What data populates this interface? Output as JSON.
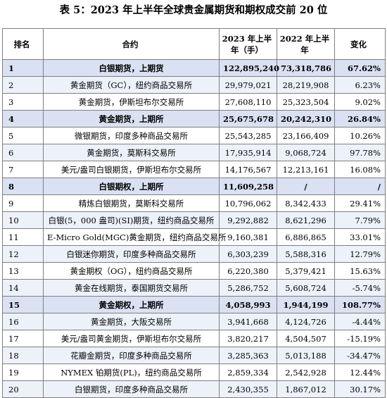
{
  "title": "表 5：2023 年上半年全球贵金属期货和期权成交前 20 位",
  "headers": {
    "rank": "排名",
    "contract": "合约",
    "h2023_line1": "2023 年上半",
    "h2023_line2": "年（手）",
    "h2022_line1": "2022 年上半",
    "h2022_line2": "年",
    "change": "变化"
  },
  "rows": [
    {
      "rank": "1",
      "contract": "白银期货，上期货",
      "v2023": "122,895,240",
      "v2022": "73,318,786",
      "change": "67.62%"
    },
    {
      "rank": "2",
      "contract": "黄金期货（GC），纽约商品交易所",
      "v2023": "29,979,021",
      "v2022": "28,219,908",
      "change": "6.23%"
    },
    {
      "rank": "3",
      "contract": "黄金期货，伊斯坦布尔交易所",
      "v2023": "27,608,110",
      "v2022": "25,323,504",
      "change": "9.02%"
    },
    {
      "rank": "4",
      "contract": "黄金期货，上期所",
      "v2023": "25,675,678",
      "v2022": "20,242,310",
      "change": "26.84%"
    },
    {
      "rank": "5",
      "contract": "微银期货，印度多种商品交易所",
      "v2023": "25,543,285",
      "v2022": "23,166,409",
      "change": "10.26%"
    },
    {
      "rank": "6",
      "contract": "黄金期货，莫斯科交易所",
      "v2023": "17,935,914",
      "v2022": "9,068,724",
      "change": "97.78%"
    },
    {
      "rank": "7",
      "contract": "美元/盎司白银期货，伊斯坦布尔交易所",
      "v2023": "14,176,567",
      "v2022": "12,213,161",
      "change": "16.08%"
    },
    {
      "rank": "8",
      "contract": "白银期权，上期所",
      "v2023": "11,609,258",
      "v2022": "/",
      "change": "/"
    },
    {
      "rank": "9",
      "contract": "精炼白银期货，莫斯科交易所",
      "v2023": "10,796,062",
      "v2022": "8,342,433",
      "change": "29.41%"
    },
    {
      "rank": "10",
      "contract": "白银(5，000 盎司)(SI)期货，纽约商品交易所",
      "v2023": "9,292,882",
      "v2022": "8,621,296",
      "change": "7.79%"
    },
    {
      "rank": "11",
      "contract": "E-Micro Gold(MGC)黄金期货，纽约商品交易所",
      "v2023": "9,160,381",
      "v2022": "6,886,865",
      "change": "33.01%"
    },
    {
      "rank": "12",
      "contract": "白银迷你期货，印度多种商品交易所",
      "v2023": "6,303,239",
      "v2022": "5,588,316",
      "change": "12.79%"
    },
    {
      "rank": "13",
      "contract": "黄金期权（OG），纽约商品交易所",
      "v2023": "6,220,380",
      "v2022": "5,379,421",
      "change": "15.63%"
    },
    {
      "rank": "14",
      "contract": "黄金在线期货，泰国期货交易所",
      "v2023": "5,286,752",
      "v2022": "5,608,724",
      "change": "-5.74%"
    },
    {
      "rank": "15",
      "contract": "黄金期权，上期所",
      "v2023": "4,058,993",
      "v2022": "1,944,199",
      "change": "108.77%"
    },
    {
      "rank": "16",
      "contract": "黄金期货，大阪交易所",
      "v2023": "3,941,668",
      "v2022": "4,124,726",
      "change": "-4.44%"
    },
    {
      "rank": "17",
      "contract": "美元/盎司黄金期货，伊斯坦布尔交易所",
      "v2023": "3,820,217",
      "v2022": "4,504,507",
      "change": "-15.19%"
    },
    {
      "rank": "18",
      "contract": "花瓣金期货，印度多种商品交易所",
      "v2023": "3,285,363",
      "v2022": "5,013,188",
      "change": "-34.47%"
    },
    {
      "rank": "19",
      "contract": "NYMEX 铂期货(PL)，纽约商品交易所",
      "v2023": "2,859,334",
      "v2022": "2,542,928",
      "change": "12.44%"
    },
    {
      "rank": "20",
      "contract": "白银期货，印度多种商品交易所",
      "v2023": "2,430,355",
      "v2022": "1,867,012",
      "change": "30.17%"
    }
  ],
  "highlighted_ranks": [
    "1",
    "4",
    "8",
    "15"
  ],
  "colors": {
    "highlight_row": "#d9e1f2",
    "banded_row": "#edf1f9",
    "border": "#7f7f7f"
  }
}
